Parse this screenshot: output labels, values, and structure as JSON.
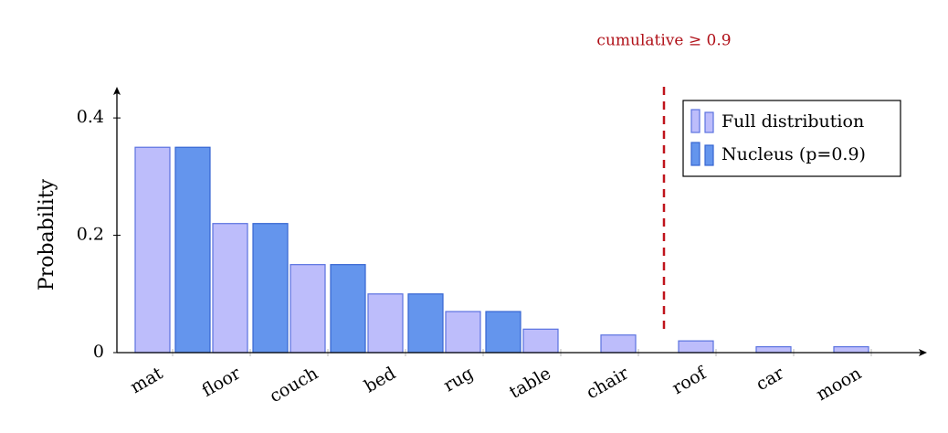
{
  "chart_data": {
    "type": "bar",
    "y_label": "Probability",
    "annotation": "cumulative ≥ 0.9",
    "categories": [
      "mat",
      "floor",
      "couch",
      "bed",
      "rug",
      "table",
      "chair",
      "roof",
      "car",
      "moon"
    ],
    "series": [
      {
        "name": "Full distribution",
        "color": "#bdbdfb",
        "values": [
          0.35,
          0.22,
          0.15,
          0.1,
          0.07,
          0.04,
          0.03,
          0.02,
          0.01,
          0.01
        ]
      },
      {
        "name": "Nucleus (p=0.9)",
        "color": "#6495ed",
        "values": [
          0.35,
          0.22,
          0.15,
          0.1,
          0.07,
          null,
          null,
          null,
          null,
          null
        ]
      }
    ],
    "ylim": [
      0,
      0.45
    ],
    "yticks": [
      0,
      0.2,
      0.4
    ],
    "legend": "upper right"
  }
}
